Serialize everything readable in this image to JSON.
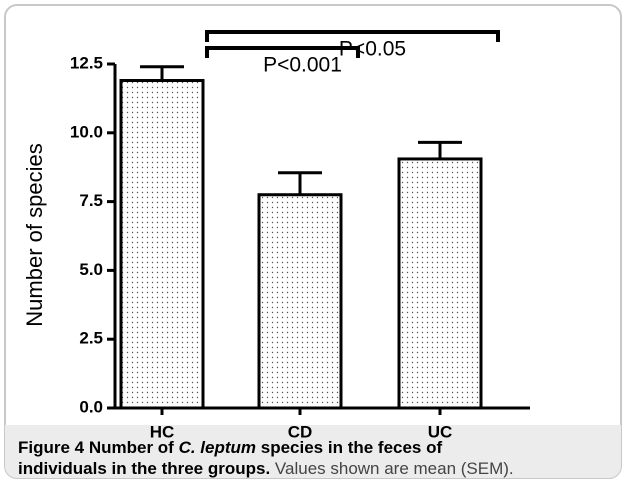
{
  "chart_data": {
    "type": "bar",
    "y_label": "Number of species",
    "categories": [
      "HC",
      "CD",
      "UC"
    ],
    "values": [
      11.9,
      7.75,
      9.05
    ],
    "errors": [
      0.5,
      0.8,
      0.6
    ],
    "color": "#ffffff",
    "ylim": [
      0,
      12.5
    ],
    "yticks": [
      {
        "value": 0,
        "label": "0.0"
      },
      {
        "value": 2.5,
        "label": "2.5"
      },
      {
        "value": 5,
        "label": "5.0"
      },
      {
        "value": 7.5,
        "label": "7.5"
      },
      {
        "value": 10,
        "label": "10.0"
      },
      {
        "value": 12.5,
        "label": "12.5"
      }
    ],
    "annotations": [
      {
        "text": "P<0.001",
        "from": 0,
        "to": 1
      },
      {
        "text": "P<0.05",
        "from": 0,
        "to": 2
      }
    ]
  },
  "caption": [
    "Figure 4",
    " Number of ",
    "C. leptum",
    " species in the feces of",
    "individuals in the three groups.",
    " Values shown are mean (SEM)."
  ]
}
